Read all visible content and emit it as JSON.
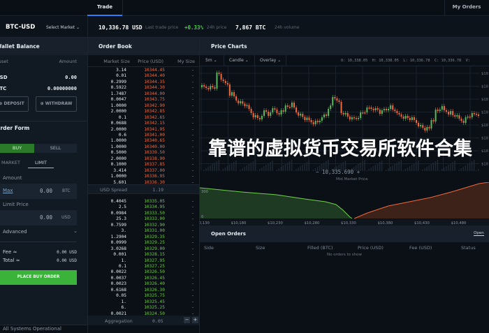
{
  "nav": {
    "tab_trade": "Trade",
    "tab_my_orders": "My Orders",
    "accent": "#2d7ff9"
  },
  "ticker": {
    "pair": "BTC-USD",
    "select_market": "Select Market",
    "last_price": "10,336.78 USD",
    "last_price_label": "Last trade price",
    "change": "+0.33%",
    "change_label": "24h price",
    "volume": "7,867 BTC",
    "volume_label": "24h volume"
  },
  "wallet": {
    "title": "Wallet Balance",
    "col_asset": "Asset",
    "col_amount": "Amount",
    "rows": [
      {
        "asset": "USD",
        "amount": "0.00"
      },
      {
        "asset": "BTC",
        "amount": "0.00000000"
      }
    ],
    "deposit": "DEPOSIT",
    "withdraw": "WITHDRAW"
  },
  "order_form": {
    "title": "Order Form",
    "buy": "BUY",
    "sell": "SELL",
    "market": "MARKET",
    "limit": "LIMIT",
    "amount_label": "Amount",
    "max": "Max",
    "amount_value": "0.00",
    "amount_unit": "BTC",
    "limit_label": "Limit Price",
    "limit_value": "0.00",
    "limit_unit": "USD",
    "advanced": "Advanced",
    "fee_label": "Fee ≈",
    "fee_value": "0.00 USD",
    "total_label": "Total ≈",
    "total_value": "0.00 USD",
    "place": "PLACE BUY ORDER",
    "buy_color": "#3bb33b"
  },
  "order_book": {
    "title": "Order Book",
    "col_size": "Market Size",
    "col_price": "Price (USD)",
    "col_my": "My Size",
    "asks": [
      [
        "3.14",
        "10344.45"
      ],
      [
        "0.01",
        "10344.40"
      ],
      [
        "0.2999",
        "10344.35"
      ],
      [
        "0.5922",
        "10344.30"
      ],
      [
        "1.7487",
        "10344.00"
      ],
      [
        "0.0047",
        "10343.75"
      ],
      [
        "1.0000",
        "10342.90"
      ],
      [
        "2.0000",
        "10342.85"
      ],
      [
        "0.1",
        "10342.65"
      ],
      [
        "0.0688",
        "10342.15"
      ],
      [
        "2.0000",
        "10341.95"
      ],
      [
        "0.6",
        "10341.00"
      ],
      [
        "1.0000",
        "10340.65"
      ],
      [
        "1.0000",
        "10340.00"
      ],
      [
        "0.5000",
        "10339.50"
      ],
      [
        "2.0000",
        "10338.90"
      ],
      [
        "0.1000",
        "10337.85"
      ],
      [
        "3.414",
        "10337.00"
      ],
      [
        "1.0000",
        "10336.95"
      ],
      [
        "5.601",
        "10336.30"
      ]
    ],
    "spread_label": "USD Spread",
    "spread": "1.19",
    "bids": [
      [
        "0.4045",
        "10335.05"
      ],
      [
        "2.5",
        "10334.95"
      ],
      [
        "0.0984",
        "10333.50"
      ],
      [
        "25.3",
        "10333.00"
      ],
      [
        "0.7599",
        "10332.90"
      ],
      [
        "3.",
        "10331.00"
      ],
      [
        "1.2904",
        "10329.35"
      ],
      [
        "0.0999",
        "10329.25"
      ],
      [
        "3.0268",
        "10329.00"
      ],
      [
        "0.001",
        "10328.15"
      ],
      [
        "1.",
        "10327.95"
      ],
      [
        "0.1",
        "10327.25"
      ],
      [
        "0.0022",
        "10326.50"
      ],
      [
        "0.0037",
        "10326.45"
      ],
      [
        "0.0023",
        "10326.40"
      ],
      [
        "0.6168",
        "10326.30"
      ],
      [
        "0.05",
        "10325.75"
      ],
      [
        "1.",
        "10325.45"
      ],
      [
        "6.",
        "10325.25"
      ],
      [
        "0.0021",
        "10324.50"
      ]
    ],
    "my_size": "-",
    "aggregation_label": "Aggregation",
    "aggregation": "0.05"
  },
  "chart": {
    "title": "Price Charts",
    "interval": "5m",
    "type": "Candle",
    "overlay": "Overlay",
    "ohlc": "O: 10,338.05  H: 10,338.05  L: 10,336.78  C: 10,336.78  V:",
    "y_tick": "$10,",
    "mid_price": "10,335.690",
    "mid_label": "Mid Market Price",
    "depth_y": [
      "300",
      "0"
    ],
    "depth_x": [
      "$10,130",
      "$10,180",
      "$10,230",
      "$10,280",
      "$10,330",
      "$10,380",
      "$10,430",
      "$10,480"
    ],
    "up_color": "#5cb85c",
    "down_color": "#f0693a"
  },
  "open_orders": {
    "title": "Open Orders",
    "tab_open": "Open",
    "cols": [
      "Side",
      "Size",
      "Filled (BTC)",
      "Price (USD)",
      "Fee (USD)",
      "Status"
    ],
    "empty": "No orders to show"
  },
  "footer": {
    "status": "All Systems Operational"
  },
  "overlay_title": "靠谱的虚拟货币交易所软件合集"
}
